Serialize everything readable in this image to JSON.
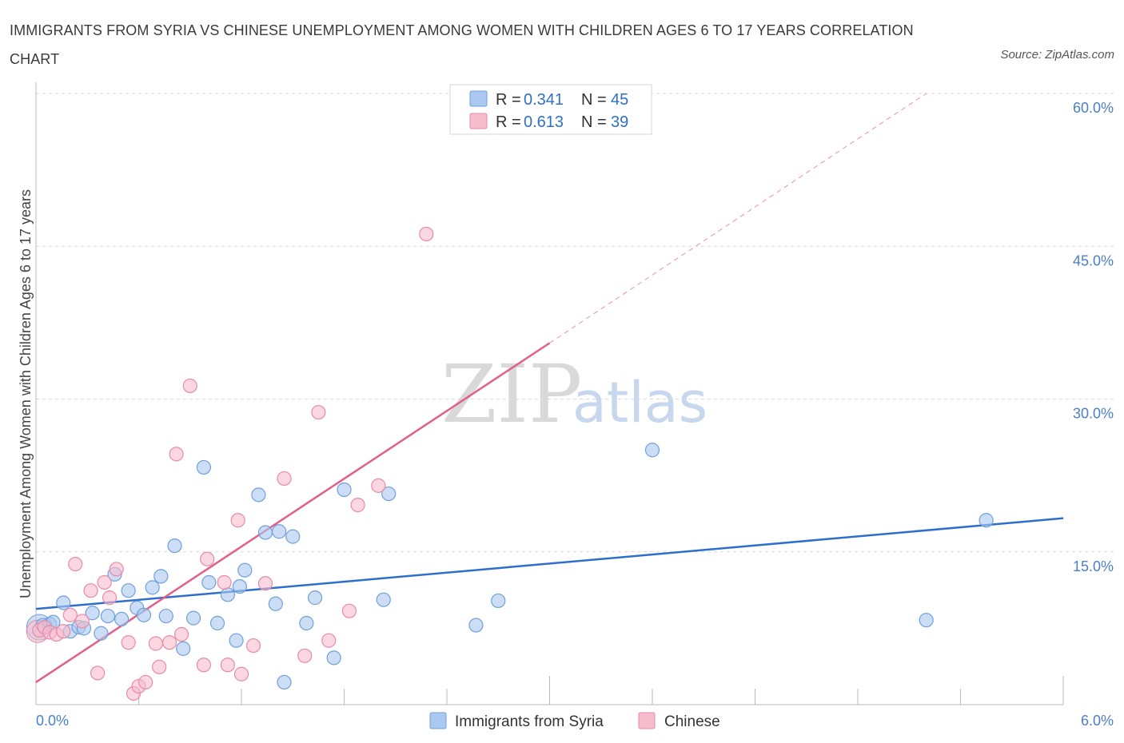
{
  "header": {
    "title": "IMMIGRANTS FROM SYRIA VS CHINESE UNEMPLOYMENT AMONG WOMEN WITH CHILDREN AGES 6 TO 17 YEARS CORRELATION CHART",
    "source": "Source: ZipAtlas.com"
  },
  "watermark": {
    "zip": "ZIP",
    "atlas": "atlas"
  },
  "legend": {
    "rows": [
      {
        "r_label": "R = ",
        "r_value": "0.341",
        "n_label": "N = ",
        "n_value": "45"
      },
      {
        "r_label": "R = ",
        "r_value": "0.613",
        "n_label": "N = ",
        "n_value": "39"
      }
    ]
  },
  "bottom_legend": [
    "Immigrants from Syria",
    "Chinese"
  ],
  "colors": {
    "syria_fill": "#aac8f0",
    "syria_stroke": "#6f9fdc",
    "syria_line": "#2e6fcd",
    "chinese_fill": "#f6bccd",
    "chinese_stroke": "#e88aa7",
    "chinese_line": "#e0608a",
    "grid": "#d9d9d9",
    "tick_text": "#4a7fc8"
  },
  "chart_data": {
    "type": "scatter",
    "title": "IMMIGRANTS FROM SYRIA VS CHINESE UNEMPLOYMENT AMONG WOMEN WITH CHILDREN AGES 6 TO 17 YEARS CORRELATION CHART",
    "xlabel": "",
    "ylabel": "Unemployment Among Women with Children Ages 6 to 17 years",
    "xlim": [
      0,
      6
    ],
    "ylim": [
      0,
      60
    ],
    "x_tick_labels": [
      "0.0%",
      "6.0%"
    ],
    "y_tick_labels": [
      "15.0%",
      "30.0%",
      "45.0%",
      "60.0%"
    ],
    "y_ticks": [
      15,
      30,
      45,
      60
    ],
    "grid": true,
    "legend_position": "top-center",
    "series": [
      {
        "name": "Immigrants from Syria",
        "R": 0.341,
        "N": 45,
        "trend": {
          "x": [
            0,
            6
          ],
          "y": [
            9.4,
            18.3
          ],
          "style": "solid"
        },
        "points": [
          [
            0.04,
            7.8
          ],
          [
            0.08,
            7.9
          ],
          [
            0.1,
            8.1
          ],
          [
            0.16,
            10.0
          ],
          [
            0.2,
            7.2
          ],
          [
            0.25,
            7.6
          ],
          [
            0.28,
            7.5
          ],
          [
            0.33,
            9.0
          ],
          [
            0.38,
            7.0
          ],
          [
            0.42,
            8.7
          ],
          [
            0.46,
            12.8
          ],
          [
            0.5,
            8.4
          ],
          [
            0.54,
            11.2
          ],
          [
            0.59,
            9.5
          ],
          [
            0.63,
            8.8
          ],
          [
            0.68,
            11.5
          ],
          [
            0.73,
            12.6
          ],
          [
            0.76,
            8.7
          ],
          [
            0.81,
            15.6
          ],
          [
            0.86,
            5.5
          ],
          [
            0.92,
            8.5
          ],
          [
            0.98,
            23.3
          ],
          [
            1.01,
            12.0
          ],
          [
            1.06,
            8.0
          ],
          [
            1.12,
            10.8
          ],
          [
            1.17,
            6.3
          ],
          [
            1.19,
            11.6
          ],
          [
            1.22,
            13.2
          ],
          [
            1.3,
            20.6
          ],
          [
            1.34,
            16.9
          ],
          [
            1.4,
            9.9
          ],
          [
            1.42,
            17.0
          ],
          [
            1.45,
            2.2
          ],
          [
            1.5,
            16.5
          ],
          [
            1.58,
            8.0
          ],
          [
            1.63,
            10.5
          ],
          [
            1.74,
            4.6
          ],
          [
            1.8,
            21.1
          ],
          [
            2.03,
            10.3
          ],
          [
            2.06,
            20.7
          ],
          [
            2.57,
            7.8
          ],
          [
            2.7,
            10.2
          ],
          [
            3.6,
            25.0
          ],
          [
            5.2,
            8.3
          ],
          [
            5.55,
            18.1
          ]
        ]
      },
      {
        "name": "Chinese",
        "R": 0.613,
        "N": 39,
        "trend": {
          "x": [
            0,
            3.0
          ],
          "y": [
            2.2,
            35.5
          ],
          "style": "solid",
          "extension": {
            "x": [
              3.0,
              5.2
            ],
            "y": [
              35.5,
              60.0
            ],
            "style": "dashed"
          }
        },
        "points": [
          [
            0.02,
            7.3
          ],
          [
            0.05,
            7.6
          ],
          [
            0.08,
            7.1
          ],
          [
            0.12,
            6.9
          ],
          [
            0.16,
            7.2
          ],
          [
            0.2,
            8.8
          ],
          [
            0.23,
            13.8
          ],
          [
            0.27,
            8.2
          ],
          [
            0.32,
            11.2
          ],
          [
            0.36,
            3.1
          ],
          [
            0.4,
            12.0
          ],
          [
            0.43,
            10.5
          ],
          [
            0.47,
            13.3
          ],
          [
            0.54,
            6.1
          ],
          [
            0.57,
            1.1
          ],
          [
            0.6,
            1.8
          ],
          [
            0.64,
            2.2
          ],
          [
            0.7,
            6.0
          ],
          [
            0.72,
            3.7
          ],
          [
            0.78,
            6.1
          ],
          [
            0.82,
            24.6
          ],
          [
            0.85,
            6.9
          ],
          [
            0.9,
            31.3
          ],
          [
            0.98,
            3.9
          ],
          [
            1.0,
            14.3
          ],
          [
            1.1,
            12.0
          ],
          [
            1.12,
            3.9
          ],
          [
            1.18,
            18.1
          ],
          [
            1.2,
            3.0
          ],
          [
            1.27,
            5.8
          ],
          [
            1.34,
            11.9
          ],
          [
            1.45,
            22.2
          ],
          [
            1.57,
            4.8
          ],
          [
            1.65,
            28.7
          ],
          [
            1.71,
            6.3
          ],
          [
            1.83,
            9.2
          ],
          [
            1.88,
            19.6
          ],
          [
            2.0,
            21.5
          ],
          [
            2.28,
            46.2
          ]
        ]
      }
    ]
  }
}
